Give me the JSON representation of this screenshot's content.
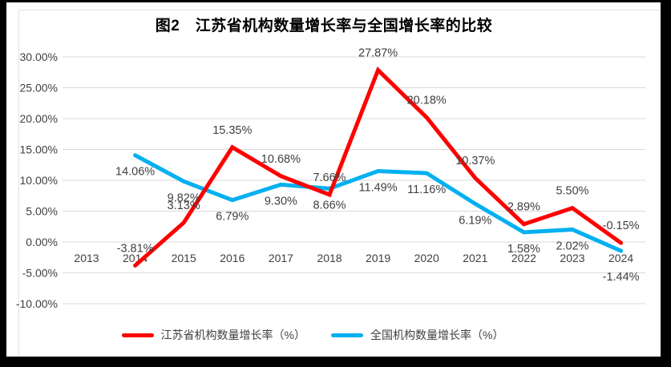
{
  "chart_data": {
    "type": "line",
    "title": "图2　江苏省机构数量增长率与全国增长率的比较",
    "categories": [
      "2013",
      "2014",
      "2015",
      "2016",
      "2017",
      "2018",
      "2019",
      "2020",
      "2021",
      "2022",
      "2023",
      "2024"
    ],
    "series": [
      {
        "name": "江苏省机构数量增长率（%）",
        "color": "#FF0000",
        "values": [
          null,
          -3.81,
          3.13,
          15.35,
          10.68,
          7.66,
          27.87,
          20.18,
          10.37,
          2.89,
          5.5,
          -0.15
        ],
        "labels": [
          "",
          "-3.81%",
          "3.13%",
          "15.35%",
          "10.68%",
          "7.66%",
          "27.87%",
          "20.18%",
          "10.37%",
          "2.89%",
          "5.50%",
          "-0.15%"
        ],
        "label_position": "above",
        "label_dy": -17,
        "label_dy_overrides": {}
      },
      {
        "name": "全国机构数量增长率（%）",
        "color": "#00B0F0",
        "values": [
          null,
          14.06,
          9.82,
          6.79,
          9.3,
          8.66,
          11.49,
          11.16,
          6.19,
          1.58,
          2.02,
          -1.44
        ],
        "labels": [
          "",
          "14.06%",
          "9.82%",
          "6.79%",
          "9.30%",
          "8.66%",
          "11.49%",
          "11.16%",
          "6.19%",
          "1.58%",
          "2.02%",
          "-1.44%"
        ],
        "label_position": "below",
        "label_dy": 25,
        "label_dy_overrides": {
          "11": 37
        }
      }
    ],
    "y_axis": {
      "min": -10,
      "max": 30,
      "ticks": [
        {
          "label": "30.00%",
          "value": 30
        },
        {
          "label": "25.00%",
          "value": 25
        },
        {
          "label": "20.00%",
          "value": 20
        },
        {
          "label": "15.00%",
          "value": 15
        },
        {
          "label": "10.00%",
          "value": 10
        },
        {
          "label": "5.00%",
          "value": 5
        },
        {
          "label": "0.00%",
          "value": 0
        },
        {
          "label": "-5.00%",
          "value": -5
        },
        {
          "label": "-10.00%",
          "value": -10
        }
      ]
    },
    "grid": true,
    "gridline_color": "#D9D9D9",
    "text_color": "#404040",
    "legend_position": "bottom"
  }
}
